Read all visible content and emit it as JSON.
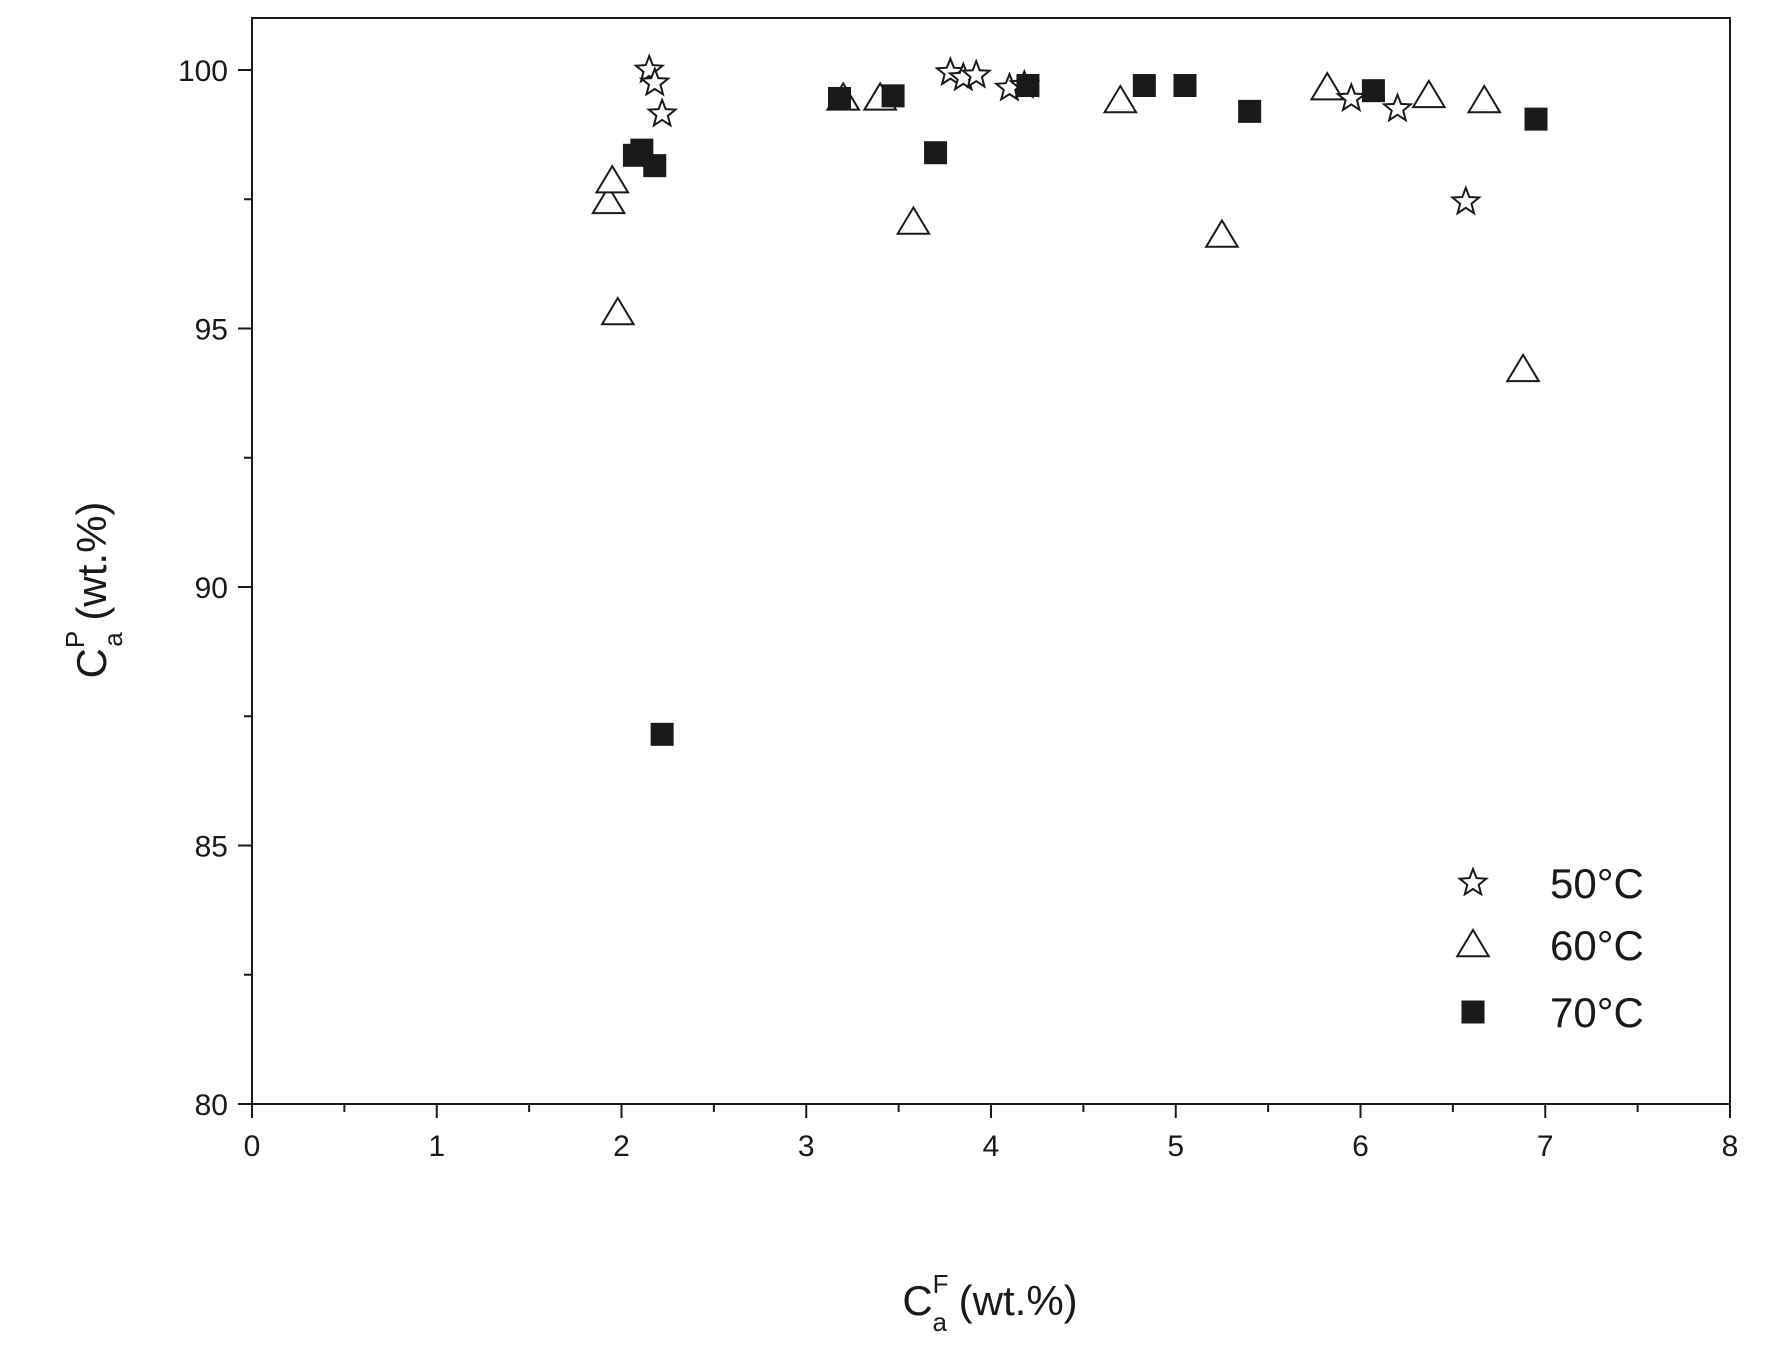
{
  "chart_data": {
    "type": "scatter",
    "title": "",
    "xlabel": {
      "main": "C",
      "sup": "F",
      "sub": "a",
      "unit": " (wt.%)"
    },
    "ylabel": {
      "main": "C",
      "sup": "P",
      "sub": "a",
      "unit": " (wt.%)"
    },
    "xlim": [
      0,
      8
    ],
    "ylim": [
      80,
      101
    ],
    "x_ticks": [
      0,
      1,
      2,
      3,
      4,
      5,
      6,
      7,
      8
    ],
    "y_ticks": [
      80,
      85,
      90,
      95,
      100
    ],
    "legend_position": "bottom-right",
    "grid": false,
    "series": [
      {
        "name": "50°C",
        "marker": "star-open",
        "color": "#1a1a1a",
        "points": [
          [
            2.15,
            100.0
          ],
          [
            2.18,
            99.75
          ],
          [
            2.22,
            99.15
          ],
          [
            3.78,
            99.95
          ],
          [
            3.85,
            99.85
          ],
          [
            3.92,
            99.9
          ],
          [
            4.1,
            99.65
          ],
          [
            4.18,
            99.7
          ],
          [
            5.95,
            99.45
          ],
          [
            6.2,
            99.25
          ],
          [
            6.57,
            97.45
          ]
        ]
      },
      {
        "name": "60°C",
        "marker": "triangle-open",
        "color": "#1a1a1a",
        "points": [
          [
            1.93,
            97.45
          ],
          [
            1.95,
            97.85
          ],
          [
            1.98,
            95.3
          ],
          [
            3.2,
            99.45
          ],
          [
            3.4,
            99.45
          ],
          [
            3.58,
            97.05
          ],
          [
            4.7,
            99.4
          ],
          [
            5.25,
            96.8
          ],
          [
            5.82,
            99.65
          ],
          [
            6.37,
            99.5
          ],
          [
            6.67,
            99.4
          ],
          [
            6.88,
            94.2
          ]
        ]
      },
      {
        "name": "70°C",
        "marker": "square-filled",
        "color": "#1a1a1a",
        "points": [
          [
            2.07,
            98.35
          ],
          [
            2.11,
            98.45
          ],
          [
            2.18,
            98.15
          ],
          [
            2.22,
            87.15
          ],
          [
            3.18,
            99.45
          ],
          [
            3.47,
            99.5
          ],
          [
            3.7,
            98.4
          ],
          [
            4.2,
            99.7
          ],
          [
            4.83,
            99.7
          ],
          [
            5.05,
            99.7
          ],
          [
            5.4,
            99.2
          ],
          [
            6.07,
            99.6
          ],
          [
            6.95,
            99.05
          ]
        ]
      }
    ]
  }
}
